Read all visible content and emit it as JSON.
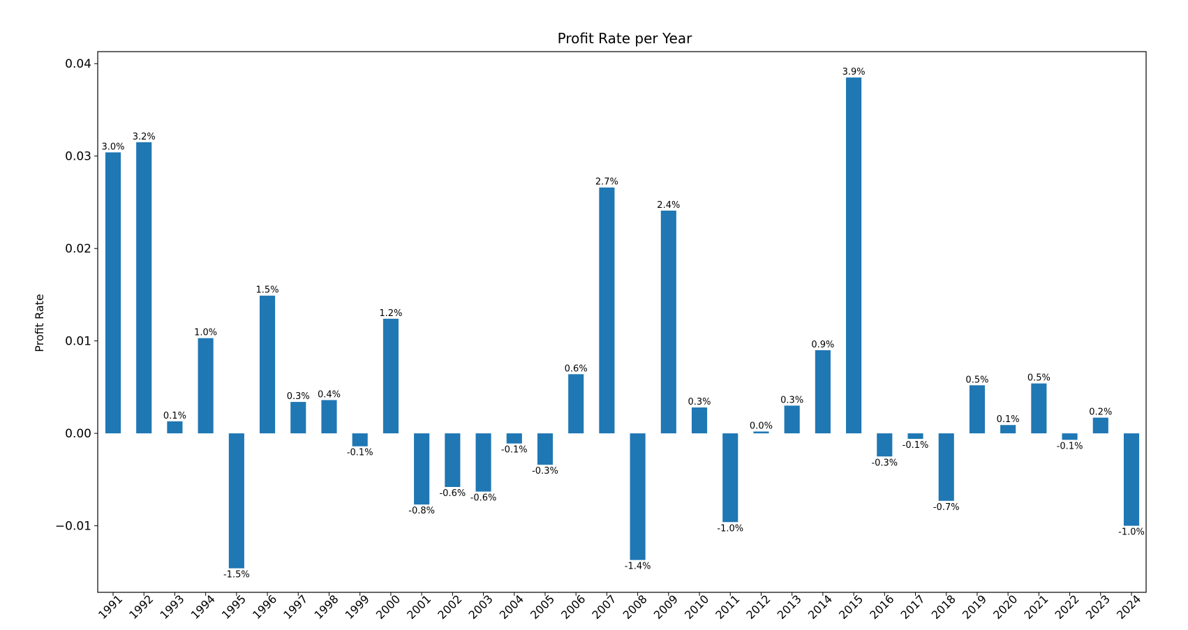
{
  "chart_data": {
    "type": "bar",
    "title": "Profit Rate per Year",
    "xlabel": "",
    "ylabel": "Profit Rate",
    "ylim": [
      -0.0172,
      0.0413
    ],
    "yticks": [
      -0.01,
      0.0,
      0.01,
      0.02,
      0.03,
      0.04
    ],
    "ytick_labels": [
      "−0.01",
      "0.00",
      "0.01",
      "0.02",
      "0.03",
      "0.04"
    ],
    "grid": false,
    "bar_color": "#1f77b4",
    "categories": [
      "1991",
      "1992",
      "1993",
      "1994",
      "1995",
      "1996",
      "1997",
      "1998",
      "1999",
      "2000",
      "2001",
      "2002",
      "2003",
      "2004",
      "2005",
      "2006",
      "2007",
      "2008",
      "2009",
      "2010",
      "2011",
      "2012",
      "2013",
      "2014",
      "2015",
      "2016",
      "2017",
      "2018",
      "2019",
      "2020",
      "2021",
      "2022",
      "2023",
      "2024"
    ],
    "values": [
      0.0304,
      0.0315,
      0.0013,
      0.0103,
      -0.0146,
      0.0149,
      0.0034,
      0.0036,
      -0.0014,
      0.0124,
      -0.0077,
      -0.0058,
      -0.0063,
      -0.0011,
      -0.0034,
      0.0064,
      0.0266,
      -0.0137,
      0.0241,
      0.0028,
      -0.0096,
      0.0002,
      0.003,
      0.009,
      0.0385,
      -0.0025,
      -0.0006,
      -0.0073,
      0.0052,
      0.0009,
      0.0054,
      -0.0007,
      0.0017,
      -0.01
    ],
    "data_labels": [
      "3.0%",
      "3.2%",
      "0.1%",
      "1.0%",
      "-1.5%",
      "1.5%",
      "0.3%",
      "0.4%",
      "-0.1%",
      "1.2%",
      "-0.8%",
      "-0.6%",
      "-0.6%",
      "-0.1%",
      "-0.3%",
      "0.6%",
      "2.7%",
      "-1.4%",
      "2.4%",
      "0.3%",
      "-1.0%",
      "0.0%",
      "0.3%",
      "0.9%",
      "3.9%",
      "-0.3%",
      "-0.1%",
      "-0.7%",
      "0.5%",
      "0.1%",
      "0.5%",
      "-0.1%",
      "0.2%",
      "-1.0%"
    ]
  }
}
